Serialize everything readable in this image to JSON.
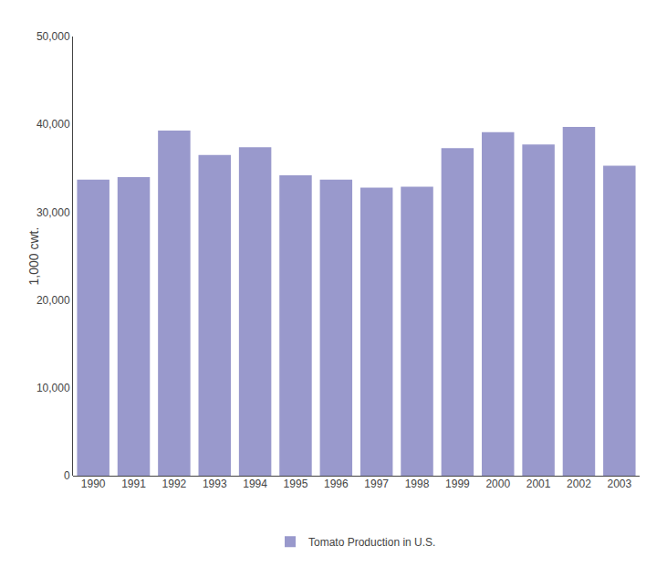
{
  "chart_data": {
    "type": "bar",
    "categories": [
      "1990",
      "1991",
      "1992",
      "1993",
      "1994",
      "1995",
      "1996",
      "1997",
      "1998",
      "1999",
      "2000",
      "2001",
      "2002",
      "2003"
    ],
    "series": [
      {
        "name": "Tomato Production in U.S.",
        "color": "#9999cc",
        "values": [
          33700,
          34000,
          39300,
          36500,
          37400,
          34200,
          33700,
          32800,
          32900,
          37300,
          39100,
          37700,
          39700,
          35300
        ]
      }
    ],
    "ylabel": "1,000 cwt.",
    "ylim": [
      0,
      50000
    ],
    "yticks": [
      0,
      {
        "value": 10000,
        "label": "10,000"
      },
      {
        "value": 20000,
        "label": "20,000"
      },
      {
        "value": 30000,
        "label": "30,000"
      },
      {
        "value": 40000,
        "label": "40,000"
      },
      {
        "value": 50000,
        "label": "50,000"
      }
    ],
    "grid": false,
    "legend": "bottom"
  }
}
